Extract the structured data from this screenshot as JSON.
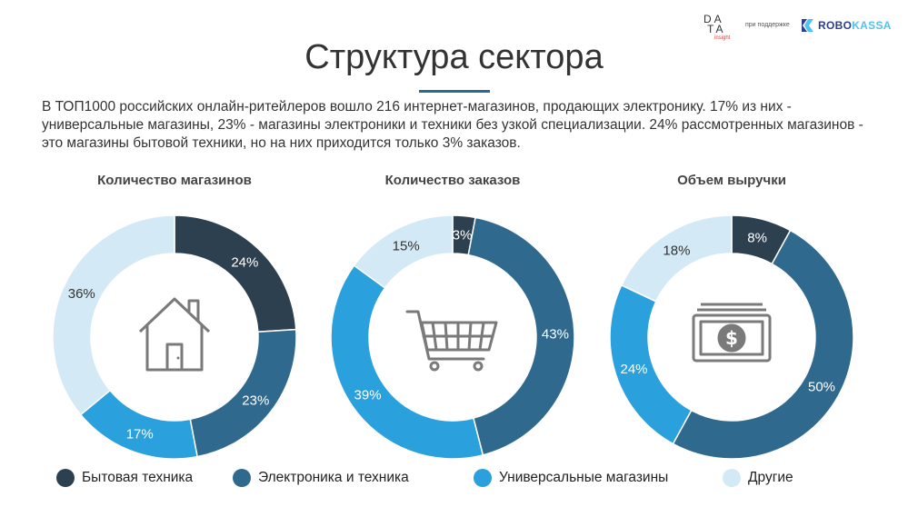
{
  "logos": {
    "data_insight": {
      "line1": "DA",
      "line2": "TA",
      "line3": "insight"
    },
    "support_text": "при поддержке",
    "robokassa": {
      "part1": "ROBO",
      "part2": "KASSA"
    }
  },
  "title": "Структура сектора",
  "description": "В ТОП1000 российских онлайн-ритейлеров вошло 216 интернет-магазинов, продающих электронику. 17% из них - универсальные магазины, 23% - магазины электроники и техники без узкой специализации. 24% рассмотренных магазинов - это магазины бытовой техники, но на них приходится только 3% заказов.",
  "colors": {
    "Бытовая техника": "#2d4050",
    "Электроника и техника": "#2f6a8e",
    "Универсальные магазины": "#2aa0dc",
    "Другие": "#d4e9f6",
    "icon": "#7a7a7a"
  },
  "chart_data": [
    {
      "type": "pie",
      "title": "Количество магазинов",
      "icon": "house-icon",
      "categories": [
        "Бытовая техника",
        "Электроника и техника",
        "Универсальные магазины",
        "Другие"
      ],
      "values": [
        24,
        23,
        17,
        36
      ],
      "labels": [
        "24%",
        "23%",
        "17%",
        "36%"
      ]
    },
    {
      "type": "pie",
      "title": "Количество заказов",
      "icon": "shopping-cart-icon",
      "categories": [
        "Бытовая техника",
        "Электроника и техника",
        "Универсальные магазины",
        "Другие"
      ],
      "values": [
        3,
        43,
        39,
        15
      ],
      "labels": [
        "3%",
        "43%",
        "39%",
        "15%"
      ]
    },
    {
      "type": "pie",
      "title": "Объем выручки",
      "icon": "money-icon",
      "categories": [
        "Бытовая техника",
        "Электроника и техника",
        "Универсальные магазины",
        "Другие"
      ],
      "values": [
        8,
        50,
        24,
        18
      ],
      "labels": [
        "8%",
        "50%",
        "24%",
        "18%"
      ]
    }
  ],
  "legend": [
    {
      "label": "Бытовая техника"
    },
    {
      "label": "Электроника и техника"
    },
    {
      "label": "Универсальные магазины"
    },
    {
      "label": "Другие"
    }
  ]
}
